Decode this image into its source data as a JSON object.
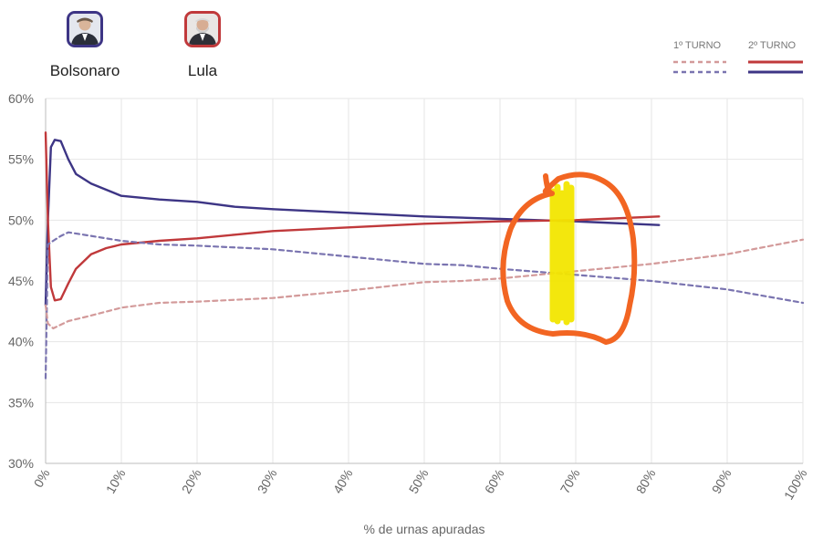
{
  "candidates": [
    {
      "name": "Bolsonaro",
      "color": "#3d3585"
    },
    {
      "name": "Lula",
      "color": "#c0393b"
    }
  ],
  "legend": {
    "first_round": "1º TURNO",
    "second_round": "2º TURNO"
  },
  "source": "",
  "chart_data": {
    "type": "line",
    "xlabel": "% de urnas apuradas",
    "ylabel": "",
    "xlim": [
      0,
      100
    ],
    "ylim": [
      30,
      60
    ],
    "x_ticks": [
      "0%",
      "10%",
      "20%",
      "30%",
      "40%",
      "50%",
      "60%",
      "70%",
      "80%",
      "90%",
      "100%"
    ],
    "y_ticks": [
      "30%",
      "35%",
      "40%",
      "45%",
      "50%",
      "55%",
      "60%"
    ],
    "grid": true,
    "legend_position": "top-right",
    "series": [
      {
        "name": "Bolsonaro",
        "round": "2º TURNO",
        "style": "solid",
        "color": "#3d3585",
        "points": [
          [
            0,
            43
          ],
          [
            0.3,
            50
          ],
          [
            0.7,
            56
          ],
          [
            1.2,
            56.6
          ],
          [
            2,
            56.5
          ],
          [
            3,
            55
          ],
          [
            4,
            53.8
          ],
          [
            6,
            53
          ],
          [
            8,
            52.5
          ],
          [
            10,
            52
          ],
          [
            15,
            51.7
          ],
          [
            20,
            51.5
          ],
          [
            25,
            51.1
          ],
          [
            30,
            50.9
          ],
          [
            40,
            50.6
          ],
          [
            50,
            50.3
          ],
          [
            60,
            50.1
          ],
          [
            70,
            49.9
          ],
          [
            81,
            49.6
          ]
        ]
      },
      {
        "name": "Lula",
        "round": "2º TURNO",
        "style": "solid",
        "color": "#c0393b",
        "points": [
          [
            0,
            57.2
          ],
          [
            0.3,
            50
          ],
          [
            0.7,
            44.5
          ],
          [
            1.2,
            43.4
          ],
          [
            2,
            43.5
          ],
          [
            3,
            44.8
          ],
          [
            4,
            46
          ],
          [
            6,
            47.2
          ],
          [
            8,
            47.7
          ],
          [
            10,
            48
          ],
          [
            15,
            48.3
          ],
          [
            20,
            48.5
          ],
          [
            25,
            48.8
          ],
          [
            30,
            49.1
          ],
          [
            40,
            49.4
          ],
          [
            50,
            49.7
          ],
          [
            60,
            49.9
          ],
          [
            70,
            50
          ],
          [
            81,
            50.3
          ]
        ]
      },
      {
        "name": "Bolsonaro",
        "round": "1º TURNO",
        "style": "dashed",
        "color": "#7a74b0",
        "points": [
          [
            0,
            37
          ],
          [
            0.3,
            48
          ],
          [
            1,
            48.3
          ],
          [
            2,
            48.7
          ],
          [
            3,
            49
          ],
          [
            5,
            48.8
          ],
          [
            10,
            48.3
          ],
          [
            15,
            48
          ],
          [
            20,
            47.9
          ],
          [
            30,
            47.6
          ],
          [
            40,
            47
          ],
          [
            50,
            46.4
          ],
          [
            55,
            46.3
          ],
          [
            60,
            46
          ],
          [
            70,
            45.5
          ],
          [
            80,
            45
          ],
          [
            90,
            44.3
          ],
          [
            100,
            43.2
          ]
        ]
      },
      {
        "name": "Lula",
        "round": "1º TURNO",
        "style": "dashed",
        "color": "#d39a9a",
        "points": [
          [
            0,
            43
          ],
          [
            0.3,
            41.5
          ],
          [
            1,
            41.1
          ],
          [
            2,
            41.4
          ],
          [
            3,
            41.7
          ],
          [
            5,
            42
          ],
          [
            10,
            42.8
          ],
          [
            15,
            43.2
          ],
          [
            20,
            43.3
          ],
          [
            30,
            43.6
          ],
          [
            40,
            44.2
          ],
          [
            50,
            44.9
          ],
          [
            55,
            45
          ],
          [
            60,
            45.2
          ],
          [
            70,
            45.8
          ],
          [
            80,
            46.4
          ],
          [
            90,
            47.2
          ],
          [
            100,
            48.4
          ]
        ]
      }
    ]
  }
}
